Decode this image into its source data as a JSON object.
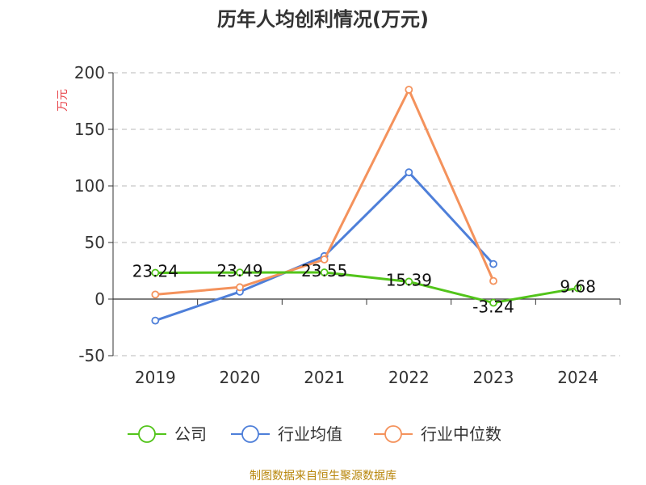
{
  "chart_data": {
    "type": "line",
    "title": "历年人均创利情况(万元)",
    "ylabel": "万元",
    "xlabel": "",
    "categories": [
      "2019",
      "2020",
      "2021",
      "2022",
      "2023",
      "2024"
    ],
    "ylim": [
      -50,
      200
    ],
    "yticks": [
      -50,
      0,
      50,
      100,
      150,
      200
    ],
    "grid": true,
    "legend_position": "bottom",
    "series": [
      {
        "name": "公司",
        "color": "#52c41a",
        "values": [
          23.24,
          23.49,
          23.55,
          15.39,
          -3.24,
          9.68
        ],
        "labels": [
          "23.24",
          "23.49",
          "23.55",
          "15.39",
          "-3.24",
          "9.68"
        ]
      },
      {
        "name": "行业均值",
        "color": "#4e7fd9",
        "values": [
          -19,
          6.5,
          38,
          112,
          31,
          null
        ]
      },
      {
        "name": "行业中位数",
        "color": "#f4925c",
        "values": [
          4,
          10.5,
          35,
          185,
          16,
          null
        ]
      }
    ]
  },
  "source": "制图数据来自恒生聚源数据库"
}
